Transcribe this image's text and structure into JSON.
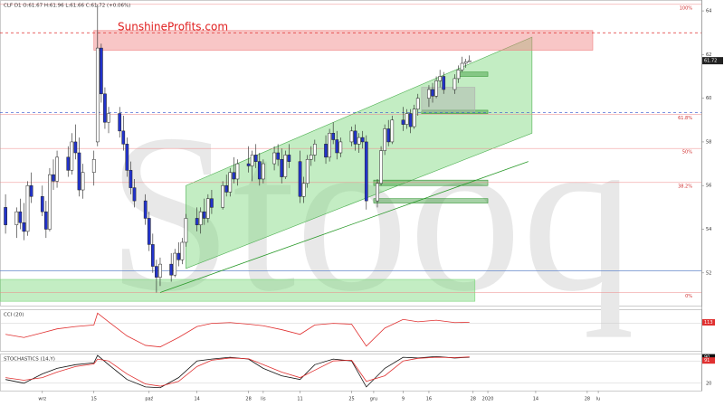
{
  "chart_data": [
    {
      "type": "candlestick",
      "title": "CLF  D1  O:61.67  H:61.96  L:61.66  C:61.72  (+0.06%)",
      "brand": "SunshineProfits.com",
      "watermark": "Stooq",
      "x": [
        -9,
        -6,
        -5,
        -4,
        -3,
        -2,
        1,
        2,
        3,
        4,
        5,
        8,
        9,
        10,
        11,
        12,
        15,
        16,
        17,
        18,
        19,
        22,
        23,
        24,
        25,
        26,
        29,
        30,
        31,
        32,
        33,
        36,
        37,
        38,
        39,
        40,
        43,
        44,
        45,
        46,
        47,
        50,
        51,
        52,
        53,
        54,
        57,
        58,
        59,
        60,
        61,
        64,
        65,
        66,
        67,
        68,
        71,
        72,
        73,
        74,
        75,
        78,
        79,
        80,
        81,
        82,
        85,
        86,
        87,
        88,
        89,
        92,
        93,
        94,
        95,
        96,
        99,
        100,
        101,
        102,
        103,
        106,
        107,
        108,
        109,
        110,
        113,
        114,
        115,
        116,
        117
      ],
      "open": [
        55.0,
        54.2,
        54.8,
        54.3,
        53.9,
        56.0,
        55.5,
        54.8,
        54.0,
        56.5,
        56.2,
        57.3,
        56.7,
        58.0,
        57.5,
        55.8,
        56.6,
        58.0,
        62.3,
        60.2,
        58.9,
        59.3,
        58.5,
        57.9,
        56.7,
        55.9,
        55.3,
        54.5,
        53.3,
        52.3,
        51.8,
        52.4,
        51.9,
        52.9,
        52.6,
        53.4,
        54.5,
        54.2,
        54.8,
        54.5,
        55.4,
        55.0,
        56.0,
        55.7,
        56.6,
        56.3,
        57.0,
        56.9,
        57.4,
        57.1,
        56.3,
        57.0,
        57.5,
        57.2,
        56.4,
        57.4,
        57.1,
        55.5,
        56.1,
        57.2,
        57.4,
        57.9,
        57.3,
        58.4,
        58.1,
        57.5,
        58.0,
        58.5,
        57.9,
        58.2,
        58.0,
        55.3,
        56.1,
        57.6,
        58.6,
        58.0,
        59.0,
        58.8,
        59.3,
        58.7,
        59.5,
        60.0,
        60.4,
        60.1,
        60.8,
        61.0,
        60.4,
        60.9,
        61.3,
        61.6,
        61.67
      ],
      "high": [
        55.6,
        55.0,
        55.4,
        55.2,
        56.2,
        56.6,
        56.0,
        55.3,
        56.8,
        57.2,
        57.6,
        57.8,
        58.4,
        58.8,
        58.2,
        57.0,
        57.6,
        64.3,
        62.5,
        60.5,
        59.6,
        59.6,
        59.2,
        58.2,
        57.1,
        56.3,
        55.6,
        54.8,
        53.8,
        52.6,
        52.7,
        52.9,
        53.1,
        53.4,
        53.6,
        54.7,
        55.0,
        55.0,
        55.4,
        55.6,
        55.8,
        56.2,
        56.5,
        56.8,
        57.3,
        57.2,
        57.8,
        57.6,
        57.9,
        57.5,
        57.2,
        57.8,
        57.9,
        57.7,
        57.6,
        57.9,
        57.6,
        56.4,
        57.4,
        57.8,
        58.1,
        58.3,
        58.6,
        58.9,
        58.5,
        58.2,
        58.7,
        58.8,
        58.4,
        58.5,
        58.3,
        56.3,
        57.8,
        58.8,
        59.0,
        59.2,
        59.6,
        59.5,
        59.5,
        59.7,
        60.2,
        60.6,
        60.7,
        61.0,
        61.3,
        61.2,
        61.1,
        61.5,
        61.9,
        61.8,
        61.96
      ],
      "low": [
        53.8,
        53.6,
        54.0,
        53.5,
        53.7,
        55.2,
        54.6,
        53.6,
        53.9,
        55.8,
        55.9,
        56.4,
        56.5,
        57.2,
        55.5,
        55.4,
        56.0,
        57.8,
        59.8,
        58.6,
        58.4,
        58.2,
        57.6,
        56.4,
        55.6,
        55.0,
        54.2,
        53.0,
        52.0,
        51.1,
        51.4,
        51.6,
        51.8,
        52.3,
        52.4,
        53.2,
        53.9,
        53.8,
        54.2,
        54.3,
        54.7,
        54.9,
        55.5,
        55.5,
        56.1,
        56.0,
        56.6,
        56.2,
        56.8,
        56.0,
        56.1,
        56.7,
        56.9,
        56.1,
        56.3,
        56.8,
        55.2,
        55.2,
        55.9,
        56.9,
        57.1,
        57.0,
        57.1,
        57.9,
        57.2,
        57.3,
        57.8,
        57.6,
        57.5,
        57.7,
        54.9,
        55.0,
        56.0,
        57.4,
        57.8,
        57.9,
        58.5,
        58.6,
        58.4,
        58.6,
        59.2,
        59.6,
        59.8,
        60.0,
        60.5,
        60.2,
        60.2,
        60.7,
        61.2,
        61.4,
        61.66
      ],
      "close": [
        54.2,
        54.8,
        54.3,
        53.9,
        56.0,
        55.5,
        54.8,
        54.0,
        56.5,
        56.2,
        57.3,
        56.7,
        58.0,
        57.5,
        55.8,
        56.6,
        57.2,
        62.3,
        60.2,
        58.9,
        59.3,
        58.5,
        57.9,
        56.7,
        55.9,
        55.3,
        54.5,
        53.3,
        52.3,
        51.8,
        52.4,
        51.9,
        52.9,
        52.6,
        53.4,
        54.5,
        54.2,
        54.8,
        54.5,
        55.4,
        55.0,
        56.0,
        55.7,
        56.6,
        56.3,
        57.0,
        56.9,
        57.4,
        57.1,
        56.3,
        57.0,
        57.5,
        57.2,
        56.4,
        57.4,
        57.1,
        55.5,
        56.1,
        57.2,
        57.4,
        57.9,
        57.3,
        58.4,
        58.1,
        57.5,
        58.0,
        58.5,
        57.9,
        58.2,
        58.0,
        55.3,
        56.1,
        57.6,
        58.6,
        58.0,
        59.0,
        58.8,
        59.3,
        58.7,
        59.5,
        60.0,
        60.4,
        60.1,
        60.8,
        61.0,
        60.4,
        60.9,
        61.3,
        61.6,
        61.67,
        61.72
      ],
      "up_color": "#ffffff",
      "down_color": "#2233cc",
      "xlim": [
        -10.5,
        180
      ],
      "xticks": [
        {
          "value": 1,
          "label": "wrz"
        },
        15,
        {
          "value": 30,
          "label": "paź"
        },
        {
          "value": 43,
          "label": "14"
        },
        {
          "value": 57,
          "label": "28"
        },
        {
          "value": 61,
          "label": "lis"
        },
        {
          "value": 71,
          "label": "11"
        },
        {
          "value": 85,
          "label": "25"
        },
        {
          "value": 91,
          "label": "gru"
        },
        {
          "value": 99,
          "label": "9"
        },
        {
          "value": 106,
          "label": "16"
        },
        {
          "value": 118,
          "label": "28"
        },
        {
          "value": 122,
          "label": "2020"
        },
        {
          "value": 135,
          "label": "14"
        },
        {
          "value": 149,
          "label": "28"
        },
        {
          "value": 152,
          "label": "lu"
        }
      ],
      "ylim": [
        50.5,
        64.5
      ],
      "yticks": [
        52,
        54,
        56,
        58,
        60,
        62,
        64
      ],
      "fib_levels": [
        {
          "label": "100%",
          "value": 64.3
        },
        {
          "label": "61.8%",
          "value": 59.26
        },
        {
          "label": "50%",
          "value": 57.7
        },
        {
          "label": "38.2%",
          "value": 56.14
        },
        {
          "label": "0%",
          "value": 51.1
        }
      ],
      "levels": [
        {
          "value": 63,
          "color": "#e03030",
          "dash": true
        },
        {
          "value": 59.35,
          "color": "#3355cc",
          "dash": true
        },
        {
          "value": 52.1,
          "color": "#6688cc",
          "dash": false
        }
      ],
      "zones": [
        {
          "x": [
            15,
            150.5
          ],
          "y": [
            62.2,
            63.1
          ],
          "color": "#f08080"
        },
        {
          "x": [
            -10.5,
            118.5
          ],
          "y": [
            50.7,
            51.7
          ],
          "color": "#7ad67a"
        },
        {
          "x": [
            91,
            122
          ],
          "y": [
            56.0,
            56.25
          ],
          "color": "#3a9a3a"
        },
        {
          "x": [
            91,
            122
          ],
          "y": [
            55.2,
            55.4
          ],
          "color": "#3a9a3a"
        },
        {
          "x": [
            104,
            122
          ],
          "y": [
            59.3,
            59.45
          ],
          "color": "#3a9a3a"
        },
        {
          "x": [
            114,
            122
          ],
          "y": [
            61.0,
            61.2
          ],
          "color": "#3a9a3a"
        },
        {
          "x": [
            104,
            118.5
          ],
          "y": [
            59.4,
            60.5
          ],
          "color": "#b0b0b0"
        }
      ],
      "channel": [
        [
          40,
          56.0
        ],
        [
          134,
          62.8
        ],
        [
          134,
          58.4
        ],
        [
          40,
          52.2
        ]
      ],
      "channel_color": "#7ad67a",
      "trendline": [
        [
          33,
          51.1
        ],
        [
          133,
          57.1
        ]
      ],
      "trendline_color": "#2a9a2a"
    },
    {
      "type": "line",
      "title": "CCI (20)",
      "x": [
        -9,
        -4,
        1,
        5,
        10,
        15,
        16,
        19,
        24,
        29,
        33,
        38,
        43,
        47,
        52,
        57,
        61,
        66,
        71,
        75,
        80,
        85,
        89,
        94,
        99,
        103,
        108,
        113,
        117
      ],
      "series": [
        {
          "color": "#e03030",
          "values": [
            -40,
            -80,
            -20,
            30,
            60,
            80,
            230,
            120,
            -60,
            -180,
            -200,
            -80,
            60,
            100,
            110,
            90,
            70,
            20,
            -40,
            80,
            100,
            90,
            -190,
            40,
            150,
            120,
            140,
            110,
            113
          ]
        }
      ],
      "ylim": [
        -250,
        280
      ],
      "yticks": [
        100
      ]
    },
    {
      "type": "line",
      "title": "STOCHASTICS (14,Y)",
      "x": [
        -9,
        -4,
        1,
        5,
        10,
        15,
        16,
        19,
        24,
        29,
        33,
        38,
        43,
        47,
        52,
        57,
        61,
        66,
        71,
        75,
        80,
        85,
        89,
        94,
        99,
        103,
        108,
        113,
        117
      ],
      "series": [
        {
          "color": "#111111",
          "values": [
            30,
            20,
            45,
            60,
            70,
            75,
            95,
            70,
            30,
            10,
            8,
            35,
            80,
            85,
            90,
            85,
            60,
            40,
            30,
            70,
            85,
            80,
            10,
            60,
            90,
            88,
            92,
            88,
            90
          ]
        },
        {
          "color": "#e03030",
          "values": [
            35,
            28,
            35,
            50,
            65,
            72,
            85,
            80,
            45,
            18,
            12,
            25,
            65,
            82,
            88,
            86,
            70,
            50,
            35,
            55,
            80,
            82,
            25,
            40,
            80,
            87,
            90,
            89,
            91
          ]
        }
      ],
      "ylim": [
        0,
        100
      ],
      "yticks": [
        20,
        80
      ]
    }
  ]
}
